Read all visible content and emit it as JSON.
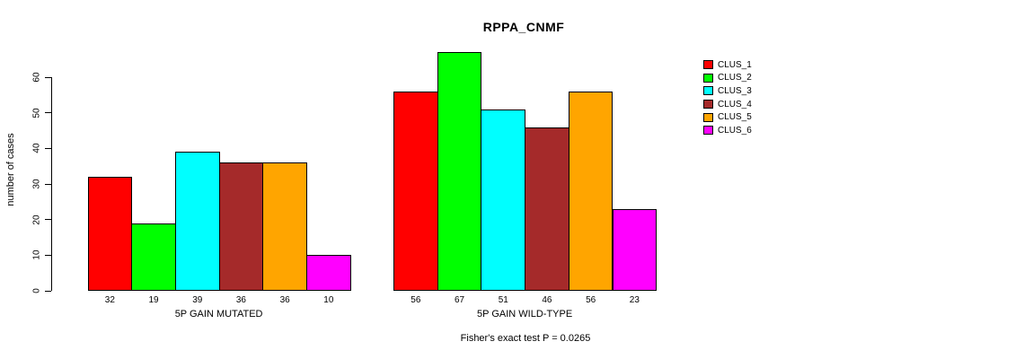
{
  "chart_data": {
    "type": "bar",
    "title": "RPPA_CNMF",
    "ylabel": "number of cases",
    "xlabel": "",
    "ylim": [
      0,
      67
    ],
    "yticks": [
      0,
      10,
      20,
      30,
      40,
      50,
      60
    ],
    "categories": [
      "5P GAIN MUTATED",
      "5P GAIN WILD-TYPE"
    ],
    "series": [
      {
        "name": "CLUS_1",
        "color": "#FF0000",
        "values": [
          32,
          56
        ]
      },
      {
        "name": "CLUS_2",
        "color": "#00FF00",
        "values": [
          19,
          67
        ]
      },
      {
        "name": "CLUS_3",
        "color": "#00FFFF",
        "values": [
          39,
          51
        ]
      },
      {
        "name": "CLUS_4",
        "color": "#A52A2A",
        "values": [
          36,
          46
        ]
      },
      {
        "name": "CLUS_5",
        "color": "#FFA500",
        "values": [
          36,
          56
        ]
      },
      {
        "name": "CLUS_6",
        "color": "#FF00FF",
        "values": [
          10,
          23
        ]
      }
    ],
    "bar_value_labels": true,
    "grid": false,
    "legend_position": "right",
    "annotation": "Fisher's exact test P = 0.0265"
  }
}
